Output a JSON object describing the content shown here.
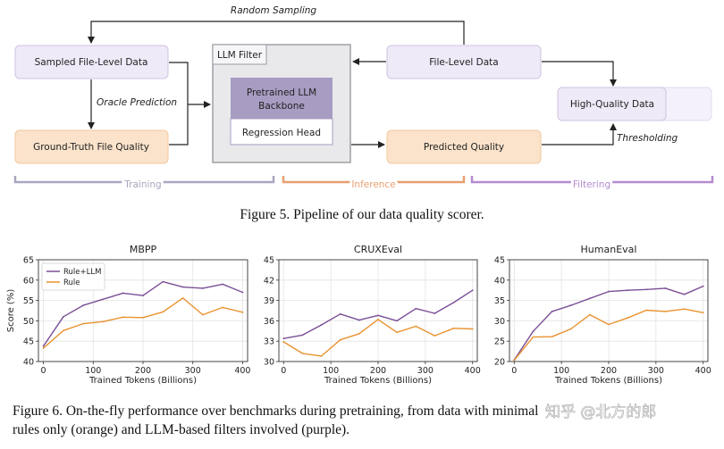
{
  "pipeline": {
    "random_sampling": "Random Sampling",
    "sampled_file_level_data": "Sampled File-Level Data",
    "oracle_prediction": "Oracle Prediction",
    "ground_truth_file_quality": "Ground-Truth File Quality",
    "llm_filter": "LLM Filter",
    "backbone_line1": "Pretrained LLM",
    "backbone_line2": "Backbone",
    "regression_head": "Regression Head",
    "file_level_data": "File-Level Data",
    "predicted_quality": "Predicted Quality",
    "high_quality_data": "High-Quality Data",
    "thresholding": "Thresholding",
    "stage_training": "Training",
    "stage_inference": "Inference",
    "stage_filtering": "Filtering",
    "colors": {
      "purple_box": "#efeaf7",
      "orange_box": "#fbe3cb",
      "training": "#a7a7bf",
      "inference": "#e8a070",
      "filtering": "#b48bd0"
    }
  },
  "figure5_caption": "Figure 5. Pipeline of our data quality scorer.",
  "chart_data": [
    {
      "type": "line",
      "title": "MBPP",
      "xlabel": "Trained Tokens (Billions)",
      "ylabel": "Score (%)",
      "xlim": [
        -10,
        410
      ],
      "ylim": [
        40,
        65
      ],
      "xticks": [
        "0",
        "100",
        "200",
        "300",
        "400"
      ],
      "yticks": [
        "40",
        "45",
        "50",
        "55",
        "60",
        "65"
      ],
      "legend": "top-left",
      "grid": true,
      "x": [
        0,
        40,
        80,
        120,
        160,
        200,
        240,
        280,
        320,
        360,
        400
      ],
      "series": [
        {
          "name": "Rule+LLM",
          "color": "#7b4f96",
          "values": [
            43.8,
            51.0,
            53.8,
            55.3,
            56.8,
            56.2,
            59.6,
            58.3,
            58.0,
            59.0,
            57.0
          ]
        },
        {
          "name": "Rule",
          "color": "#e8922f",
          "values": [
            43.3,
            47.6,
            49.3,
            49.8,
            50.9,
            50.8,
            52.2,
            55.6,
            51.5,
            53.3,
            52.1
          ]
        }
      ]
    },
    {
      "type": "line",
      "title": "CRUXEval",
      "xlabel": "Trained Tokens (Billions)",
      "ylabel": "",
      "xlim": [
        -10,
        410
      ],
      "ylim": [
        30,
        45
      ],
      "xticks": [
        "0",
        "100",
        "200",
        "300",
        "400"
      ],
      "yticks": [
        "30",
        "33",
        "36",
        "39",
        "42",
        "45"
      ],
      "grid": true,
      "x": [
        0,
        40,
        80,
        120,
        160,
        200,
        240,
        280,
        320,
        360,
        400
      ],
      "series": [
        {
          "name": "Rule+LLM",
          "color": "#7b4f96",
          "values": [
            33.4,
            33.9,
            35.4,
            37.0,
            36.1,
            36.8,
            36.0,
            37.8,
            37.1,
            38.7,
            40.5
          ]
        },
        {
          "name": "Rule",
          "color": "#e8922f",
          "values": [
            32.9,
            31.2,
            30.8,
            33.2,
            34.1,
            36.2,
            34.3,
            35.2,
            33.8,
            34.9,
            34.8
          ]
        }
      ]
    },
    {
      "type": "line",
      "title": "HumanEval",
      "xlabel": "Trained Tokens (Billions)",
      "ylabel": "",
      "xlim": [
        -10,
        410
      ],
      "ylim": [
        20,
        45
      ],
      "xticks": [
        "0",
        "100",
        "200",
        "300",
        "400"
      ],
      "yticks": [
        "20",
        "25",
        "30",
        "35",
        "40",
        "45"
      ],
      "grid": true,
      "x": [
        0,
        40,
        80,
        120,
        160,
        200,
        240,
        280,
        320,
        360,
        400
      ],
      "series": [
        {
          "name": "Rule+LLM",
          "color": "#7b4f96",
          "values": [
            20.4,
            27.4,
            32.3,
            33.8,
            35.5,
            37.2,
            37.5,
            37.7,
            38.0,
            36.5,
            38.5
          ]
        },
        {
          "name": "Rule",
          "color": "#e8922f",
          "values": [
            20.3,
            26.0,
            26.1,
            28.0,
            31.5,
            29.1,
            30.7,
            32.6,
            32.3,
            32.9,
            32.0
          ]
        }
      ]
    }
  ],
  "figure6_caption_line1": "Figure 6. On-the-fly performance over benchmarks during pretraining, from data with minimal",
  "figure6_caption_line2": "rules only (orange) and LLM-based filters involved (purple).",
  "watermark": "知乎 @北方的郎"
}
